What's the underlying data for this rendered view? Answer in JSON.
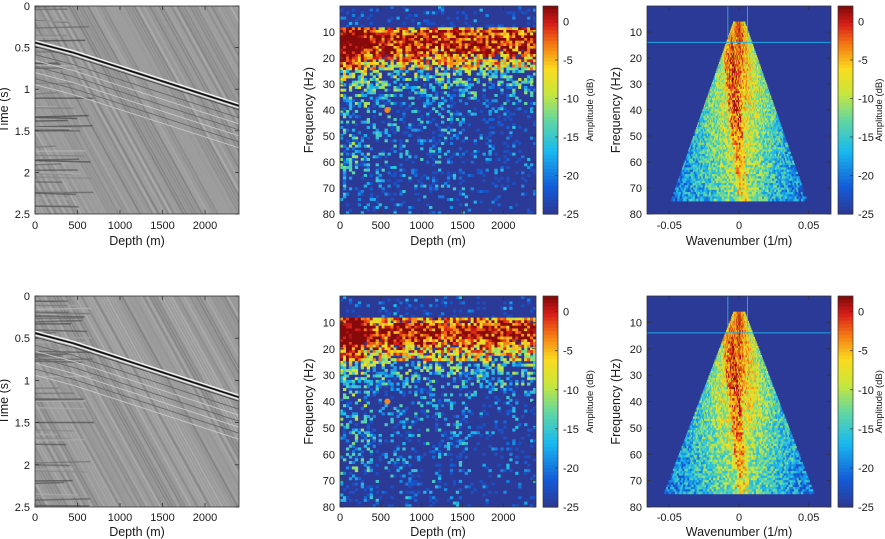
{
  "colors": {
    "deep_blue": "#2b3a97",
    "text": "#1a1a1a",
    "axis": "#333333"
  },
  "chart_data": [
    {
      "id": "top-time-depth",
      "type": "heatmap",
      "subtype": "seismic-gather",
      "xlabel": "Depth (m)",
      "ylabel": "Time (s)",
      "xlim": [
        0,
        2400
      ],
      "ylim": [
        0,
        2.5
      ],
      "xticks": [
        "0",
        "500",
        "1000",
        "1500",
        "2000"
      ],
      "yticks": [
        "0",
        "0.5",
        "1",
        "1.5",
        "2",
        "2.5"
      ],
      "events": [
        {
          "name": "downgoing-arrival",
          "x": [
            450,
            2400
          ],
          "y": [
            0.56,
            1.2
          ]
        },
        {
          "name": "shallow-onset",
          "x": [
            0,
            450
          ],
          "y": [
            0.44,
            0.56
          ]
        }
      ],
      "colormap": "gray"
    },
    {
      "id": "top-frequency-depth",
      "type": "heatmap",
      "subtype": "amplitude-spectrum",
      "xlabel": "Depth (m)",
      "ylabel": "Frequency (Hz)",
      "xlim": [
        0,
        2400
      ],
      "ylim": [
        0,
        80
      ],
      "xticks": [
        "0",
        "500",
        "1000",
        "1500",
        "2000"
      ],
      "yticks": [
        "10",
        "20",
        "30",
        "40",
        "50",
        "60",
        "70",
        "80"
      ],
      "colorbar": {
        "label": "Amplitude (dB)",
        "range": [
          -25,
          2
        ],
        "ticks": [
          "0",
          "-5",
          "-10",
          "-15",
          "-20",
          "-25"
        ]
      },
      "energy_band_hz": [
        8,
        25
      ],
      "noise_floor_hz": 35
    },
    {
      "id": "top-fk",
      "type": "heatmap",
      "subtype": "f-k-spectrum",
      "xlabel": "Wavenumber (1/m)",
      "ylabel": "Frequency (Hz)",
      "xlim": [
        -0.066,
        0.066
      ],
      "ylim": [
        0,
        80
      ],
      "xticks": [
        "-0.05",
        "0",
        "0.05"
      ],
      "yticks": [
        "10",
        "20",
        "30",
        "40",
        "50",
        "60",
        "70",
        "80"
      ],
      "colorbar": {
        "label": "Amplitude (dB)",
        "range": [
          -25,
          2
        ],
        "ticks": [
          "0",
          "-5",
          "-10",
          "-15",
          "-20",
          "-25"
        ]
      },
      "cone_apex_hz": 6,
      "cone_base_hz": 75,
      "cone_half_width_at_base": 0.045
    },
    {
      "id": "bottom-time-depth",
      "type": "heatmap",
      "subtype": "seismic-gather",
      "xlabel": "Depth (m)",
      "ylabel": "Time (s)",
      "xlim": [
        0,
        2400
      ],
      "ylim": [
        0,
        2.5
      ],
      "xticks": [
        "0",
        "500",
        "1000",
        "1500",
        "2000"
      ],
      "yticks": [
        "0",
        "0.5",
        "1",
        "1.5",
        "2",
        "2.5"
      ],
      "events": [
        {
          "name": "downgoing-arrival",
          "x": [
            450,
            2400
          ],
          "y": [
            0.56,
            1.2
          ]
        },
        {
          "name": "shallow-onset",
          "x": [
            0,
            450
          ],
          "y": [
            0.44,
            0.56
          ]
        }
      ],
      "colormap": "gray"
    },
    {
      "id": "bottom-frequency-depth",
      "type": "heatmap",
      "subtype": "amplitude-spectrum",
      "xlabel": "Depth (m)",
      "ylabel": "Frequency (Hz)",
      "xlim": [
        0,
        2400
      ],
      "ylim": [
        0,
        80
      ],
      "xticks": [
        "0",
        "500",
        "1000",
        "1500",
        "2000"
      ],
      "yticks": [
        "10",
        "20",
        "30",
        "40",
        "50",
        "60",
        "70",
        "80"
      ],
      "colorbar": {
        "label": "Amplitude (dB)",
        "range": [
          -25,
          2
        ],
        "ticks": [
          "0",
          "-5",
          "-10",
          "-15",
          "-20",
          "-25"
        ]
      },
      "energy_band_hz": [
        8,
        25
      ],
      "noise_floor_hz": 35
    },
    {
      "id": "bottom-fk",
      "type": "heatmap",
      "subtype": "f-k-spectrum",
      "xlabel": "Wavenumber (1/m)",
      "ylabel": "Frequency (Hz)",
      "xlim": [
        -0.066,
        0.066
      ],
      "ylim": [
        0,
        80
      ],
      "xticks": [
        "-0.05",
        "0",
        "0.05"
      ],
      "yticks": [
        "10",
        "20",
        "30",
        "40",
        "50",
        "60",
        "70",
        "80"
      ],
      "colorbar": {
        "label": "Amplitude (dB)",
        "range": [
          -25,
          2
        ],
        "ticks": [
          "0",
          "-5",
          "-10",
          "-15",
          "-20",
          "-25"
        ]
      },
      "cone_apex_hz": 6,
      "cone_base_hz": 75,
      "cone_half_width_at_base": 0.05
    }
  ]
}
